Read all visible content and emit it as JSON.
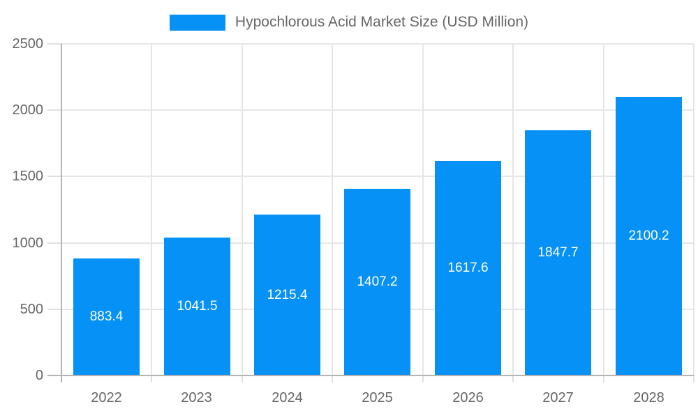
{
  "chart_data": {
    "type": "bar",
    "title": "Hypochlorous Acid Market Size (USD Million)",
    "categories": [
      "2022",
      "2023",
      "2024",
      "2025",
      "2026",
      "2027",
      "2028"
    ],
    "values": [
      883.4,
      1041.5,
      1215.4,
      1407.2,
      1617.6,
      1847.7,
      2100.2
    ],
    "value_labels": [
      "883.4",
      "1041.5",
      "1215.4",
      "1407.2",
      "1617.6",
      "1847.7",
      "2100.2"
    ],
    "xlabel": "",
    "ylabel": "",
    "ylim": [
      0,
      2500
    ],
    "yticks": [
      0,
      500,
      1000,
      1500,
      2000,
      2500
    ],
    "grid": true,
    "legend_position": "top-center"
  },
  "colors": {
    "bar": "#0591F6",
    "bar_value_label": "#FFFFFF",
    "text": "#666666",
    "grid": "#E6E6E6",
    "axis": "#B3B3B3",
    "tick_mark": "#E0E0E0",
    "background": "#FFFFFF"
  }
}
